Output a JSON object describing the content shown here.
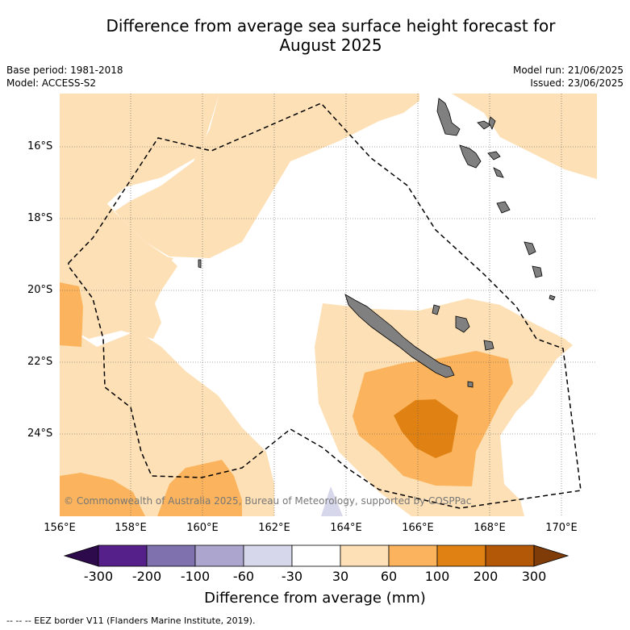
{
  "title_line1": "Difference from average sea surface height forecast for",
  "title_line2": "August 2025",
  "base_period": "Base period: 1981-2018",
  "model": "Model: ACCESS-S2",
  "model_run": "Model run: 21/06/2025",
  "issued": "Issued: 23/06/2025",
  "copyright": "© Commonwealth of Australia 2025, Bureau of Meteorology, supported by COSPPac",
  "latitudes": [
    "16°S",
    "18°S",
    "20°S",
    "22°S",
    "24°S"
  ],
  "longitudes": [
    "156°E",
    "158°E",
    "160°E",
    "162°E",
    "164°E",
    "166°E",
    "168°E",
    "170°E"
  ],
  "colorbar": {
    "title": "Difference from average (mm)",
    "ticks": [
      "-300",
      "-200",
      "-100",
      "-60",
      "-30",
      "30",
      "60",
      "100",
      "200",
      "300"
    ],
    "colors": {
      "below_min": "#2d0a4b",
      "c1": "#56208a",
      "c2": "#7f71ad",
      "c3": "#aca6cf",
      "c4": "#d6d7ea",
      "c5": "#ffffff",
      "c6": "#fde0b5",
      "c7": "#fbb45d",
      "c8": "#e08213",
      "c9": "#b35806",
      "above_max": "#7f3b08"
    }
  },
  "land_color": "#808080",
  "footnote": "--  --  -- EEZ border V11 (Flanders Marine Institute, 2019)."
}
